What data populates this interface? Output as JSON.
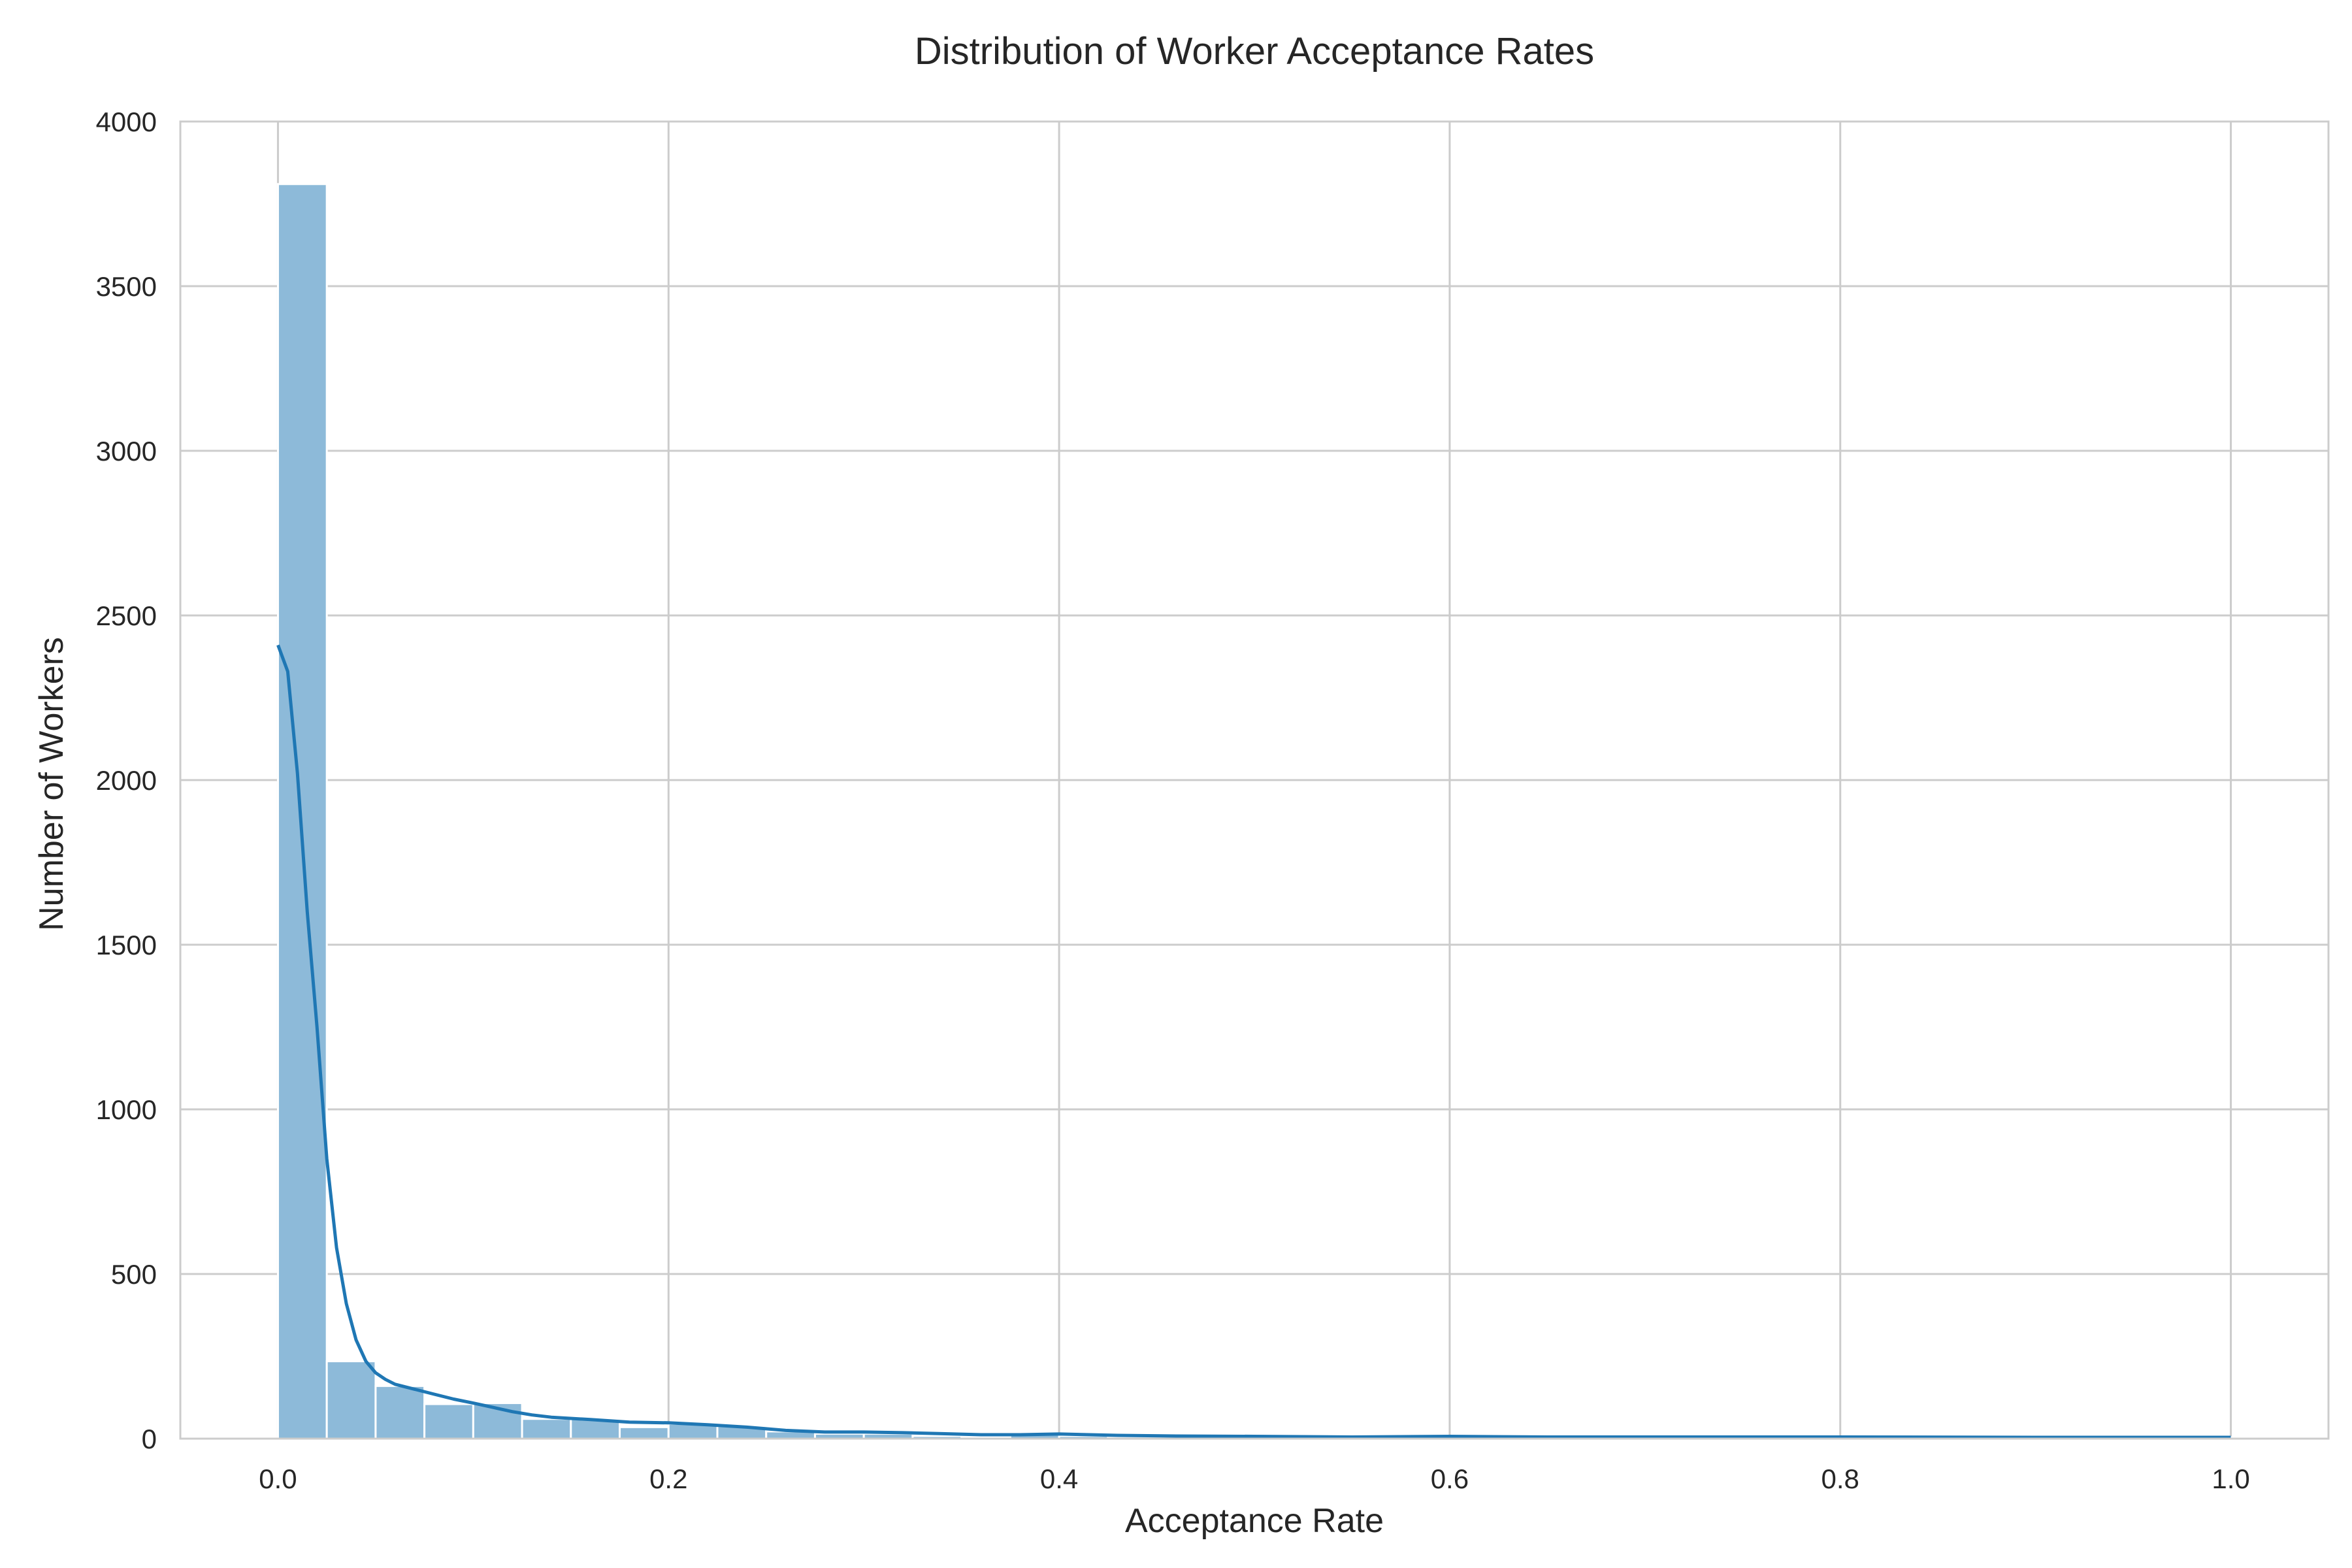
{
  "chart_data": {
    "type": "bar",
    "title": "Distribution of Worker Acceptance Rates",
    "xlabel": "Acceptance Rate",
    "ylabel": "Number of Workers",
    "xlim": [
      -0.05,
      1.05
    ],
    "ylim": [
      0,
      4000
    ],
    "xticks": [
      "0.0",
      "0.2",
      "0.4",
      "0.6",
      "0.8",
      "1.0"
    ],
    "yticks": [
      "0",
      "500",
      "1000",
      "1500",
      "2000",
      "2500",
      "3000",
      "3500",
      "4000"
    ],
    "grid": true,
    "bin_width": 0.025,
    "bins": [
      {
        "x0": 0.0,
        "count": 3810
      },
      {
        "x0": 0.025,
        "count": 235
      },
      {
        "x0": 0.05,
        "count": 160
      },
      {
        "x0": 0.075,
        "count": 105
      },
      {
        "x0": 0.1,
        "count": 108
      },
      {
        "x0": 0.125,
        "count": 60
      },
      {
        "x0": 0.15,
        "count": 60
      },
      {
        "x0": 0.175,
        "count": 35
      },
      {
        "x0": 0.2,
        "count": 45
      },
      {
        "x0": 0.225,
        "count": 38
      },
      {
        "x0": 0.25,
        "count": 22
      },
      {
        "x0": 0.275,
        "count": 15
      },
      {
        "x0": 0.3,
        "count": 15
      },
      {
        "x0": 0.325,
        "count": 8
      },
      {
        "x0": 0.35,
        "count": 5
      },
      {
        "x0": 0.375,
        "count": 12
      },
      {
        "x0": 0.4,
        "count": 8
      },
      {
        "x0": 0.425,
        "count": 5
      },
      {
        "x0": 0.45,
        "count": 4
      },
      {
        "x0": 0.475,
        "count": 5
      },
      {
        "x0": 0.5,
        "count": 6
      },
      {
        "x0": 0.525,
        "count": 4
      },
      {
        "x0": 0.55,
        "count": 3
      },
      {
        "x0": 0.575,
        "count": 6
      },
      {
        "x0": 0.6,
        "count": 5
      },
      {
        "x0": 0.625,
        "count": 3
      },
      {
        "x0": 0.65,
        "count": 2
      },
      {
        "x0": 0.675,
        "count": 2
      },
      {
        "x0": 0.7,
        "count": 2
      },
      {
        "x0": 0.725,
        "count": 2
      },
      {
        "x0": 0.75,
        "count": 2
      },
      {
        "x0": 0.775,
        "count": 3
      },
      {
        "x0": 0.8,
        "count": 2
      },
      {
        "x0": 0.825,
        "count": 2
      },
      {
        "x0": 0.85,
        "count": 2
      },
      {
        "x0": 0.875,
        "count": 2
      },
      {
        "x0": 0.9,
        "count": 2
      },
      {
        "x0": 0.925,
        "count": 2
      },
      {
        "x0": 0.95,
        "count": 2
      },
      {
        "x0": 0.975,
        "count": 4
      }
    ],
    "kde": {
      "x": [
        0.0,
        0.005,
        0.01,
        0.015,
        0.02,
        0.025,
        0.03,
        0.035,
        0.04,
        0.045,
        0.05,
        0.055,
        0.06,
        0.07,
        0.08,
        0.09,
        0.1,
        0.11,
        0.12,
        0.13,
        0.14,
        0.16,
        0.18,
        0.2,
        0.22,
        0.24,
        0.26,
        0.28,
        0.3,
        0.32,
        0.34,
        0.36,
        0.38,
        0.4,
        0.43,
        0.46,
        0.5,
        0.55,
        0.6,
        0.65,
        0.7,
        0.8,
        0.9,
        1.0
      ],
      "y": [
        2410,
        2330,
        2020,
        1600,
        1250,
        850,
        580,
        410,
        300,
        235,
        200,
        180,
        165,
        150,
        135,
        120,
        108,
        95,
        82,
        72,
        65,
        58,
        50,
        48,
        42,
        35,
        25,
        20,
        20,
        18,
        15,
        12,
        12,
        14,
        10,
        8,
        7,
        5,
        7,
        5,
        5,
        5,
        4,
        4
      ]
    },
    "colors": {
      "bar": "#8dbad9",
      "line": "#1f77b4",
      "grid": "#cccccc"
    }
  }
}
